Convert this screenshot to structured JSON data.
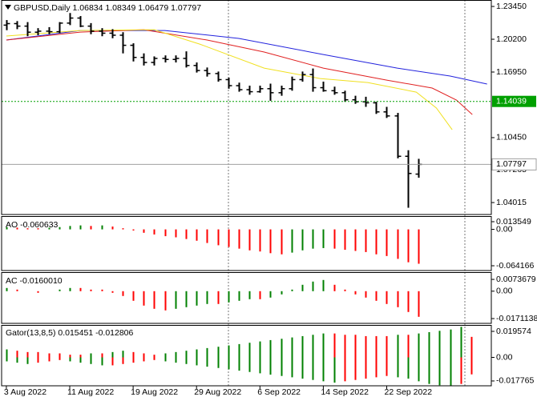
{
  "chart_data": [
    {
      "type": "ohlc",
      "title": "GBPUSD,Daily 1.06834 1.08349 1.06479 1.07797",
      "color": "#000000",
      "open": [
        1.216,
        1.2175,
        1.215,
        1.209,
        1.21,
        1.2095,
        1.218,
        1.223,
        1.215,
        1.21,
        1.208,
        1.206,
        1.196,
        1.184,
        1.179,
        1.183,
        1.182,
        1.183,
        1.176,
        1.171,
        1.168,
        1.162,
        1.156,
        1.152,
        1.15,
        1.153,
        1.149,
        1.153,
        1.162,
        1.167,
        1.154,
        1.151,
        1.149,
        1.142,
        1.14,
        1.139,
        1.13,
        1.126,
        1.086,
        1.06834
      ],
      "high": [
        1.221,
        1.22,
        1.219,
        1.213,
        1.214,
        1.219,
        1.228,
        1.225,
        1.218,
        1.213,
        1.212,
        1.209,
        1.198,
        1.188,
        1.185,
        1.186,
        1.186,
        1.19,
        1.179,
        1.174,
        1.17,
        1.164,
        1.159,
        1.156,
        1.156,
        1.158,
        1.156,
        1.165,
        1.17,
        1.173,
        1.16,
        1.155,
        1.151,
        1.146,
        1.145,
        1.14,
        1.135,
        1.129,
        1.092,
        1.08349
      ],
      "low": [
        1.211,
        1.212,
        1.205,
        1.206,
        1.207,
        1.208,
        1.216,
        1.214,
        1.207,
        1.205,
        1.203,
        1.188,
        1.18,
        1.176,
        1.176,
        1.179,
        1.179,
        1.174,
        1.169,
        1.165,
        1.16,
        1.153,
        1.15,
        1.147,
        1.149,
        1.141,
        1.146,
        1.151,
        1.16,
        1.15,
        1.15,
        1.147,
        1.14,
        1.138,
        1.135,
        1.128,
        1.124,
        1.084,
        1.035,
        1.06479
      ],
      "close": [
        1.2175,
        1.215,
        1.209,
        1.21,
        1.2095,
        1.218,
        1.223,
        1.215,
        1.21,
        1.208,
        1.206,
        1.196,
        1.184,
        1.179,
        1.183,
        1.182,
        1.183,
        1.176,
        1.171,
        1.168,
        1.162,
        1.156,
        1.152,
        1.15,
        1.153,
        1.149,
        1.153,
        1.162,
        1.167,
        1.154,
        1.151,
        1.149,
        1.142,
        1.14,
        1.139,
        1.13,
        1.126,
        1.086,
        1.069,
        1.07797
      ],
      "lines": [
        {
          "color": "#2222dd",
          "x": [
            0,
            7,
            15,
            22,
            30,
            37,
            42,
            45.5
          ],
          "values": [
            1.2012,
            1.2107,
            1.2107,
            1.2028,
            1.1869,
            1.1734,
            1.1655,
            1.1576
          ]
        },
        {
          "color": "#e02020",
          "x": [
            0,
            7,
            13,
            19,
            24.4,
            30,
            36,
            40.3,
            42.6,
            44.1
          ],
          "values": [
            1.2012,
            1.2091,
            1.2115,
            1.2012,
            1.1893,
            1.1734,
            1.1615,
            1.1536,
            1.1417,
            1.1274
          ]
        },
        {
          "color": "#f0e020",
          "x": [
            0,
            7,
            14,
            18.3,
            24.4,
            29.7,
            34.2,
            38.8,
            40.7,
            42.2
          ],
          "values": [
            1.2052,
            1.2107,
            1.2115,
            1.1972,
            1.1734,
            1.1631,
            1.1591,
            1.1496,
            1.1338,
            1.1123
          ]
        }
      ],
      "level": {
        "value": 1.14039,
        "label": "1.14039",
        "color": "#00a000"
      },
      "bid": {
        "value": 1.07797,
        "label": "1.07797",
        "color": "#a0a0a0"
      },
      "xlim": [
        -0.45,
        45.9
      ],
      "ylim": [
        1.0283,
        1.2409
      ],
      "yticks": [
        {
          "value": 1.2345,
          "label": "1.23450"
        },
        {
          "value": 1.202,
          "label": "1.20200"
        },
        {
          "value": 1.1695,
          "label": "1.16950"
        },
        {
          "value": 1.1045,
          "label": "1.10450"
        },
        1.07265,
        1.04015
      ],
      "xticks": [
        {
          "value": 0,
          "label": "3 Aug 2022"
        },
        {
          "value": 6,
          "label": "11 Aug 2022"
        },
        {
          "value": 12,
          "label": "19 Aug 2022"
        },
        {
          "value": 18,
          "label": "29 Aug 2022"
        },
        {
          "value": 24,
          "label": "6 Sep 2022"
        },
        {
          "value": 30,
          "label": "14 Sep 2022"
        },
        {
          "value": 36,
          "label": "22 Sep 2022"
        }
      ]
    },
    {
      "type": "oscillator",
      "title": "AO -0.060633",
      "up_color": "#008000",
      "down_color": "#ff0000",
      "values": [
        0.004,
        0.003,
        0.002,
        0.002,
        0.003,
        0.004,
        0.006,
        0.007,
        0.006,
        0.007,
        0.005,
        0.002,
        -0.002,
        -0.006,
        -0.009,
        -0.012,
        -0.014,
        -0.017,
        -0.02,
        -0.024,
        -0.028,
        -0.031,
        -0.034,
        -0.037,
        -0.039,
        -0.042,
        -0.044,
        -0.041,
        -0.037,
        -0.034,
        -0.033,
        -0.034,
        -0.036,
        -0.038,
        -0.04,
        -0.044,
        -0.047,
        -0.052,
        -0.058,
        -0.060633
      ],
      "ylim": [
        -0.0726,
        0.0234
      ],
      "yticks": [
        0.013549,
        {
          "value": 0,
          "label": "0.00"
        },
        -0.064166
      ]
    },
    {
      "type": "oscillator",
      "title": "AC -0.0160010",
      "up_color": "#008000",
      "down_color": "#ff0000",
      "values": [
        0.002,
        0.001,
        0.0,
        -0.001,
        0.0,
        0.001,
        0.002,
        0.002,
        0.001,
        0.001,
        -0.001,
        -0.003,
        -0.006,
        -0.009,
        -0.011,
        -0.012,
        -0.011,
        -0.01,
        -0.009,
        -0.008,
        -0.008,
        -0.007,
        -0.006,
        -0.005,
        -0.005,
        -0.004,
        -0.002,
        0.001,
        0.004,
        0.006,
        0.007,
        0.004,
        0.001,
        -0.002,
        -0.004,
        -0.006,
        -0.008,
        -0.01,
        -0.013,
        -0.016001
      ],
      "ylim": [
        -0.0201,
        0.0119
      ],
      "yticks": [
        0.0073679,
        {
          "value": 0,
          "label": "0.00"
        },
        -0.0171138
      ]
    },
    {
      "type": "gator",
      "title": "Gator(13,8,5) 0.015451 -0.012806",
      "up_color": "#008000",
      "down_color": "#ff0000",
      "upper": [
        0.006,
        0.005,
        0.004,
        0.004,
        0.003,
        0.003,
        0.002,
        0.002,
        0.003,
        0.003,
        0.004,
        0.005,
        0.004,
        0.003,
        0.002,
        0.003,
        0.004,
        0.005,
        0.006,
        0.007,
        0.008,
        0.009,
        0.01,
        0.011,
        0.012,
        0.013,
        0.014,
        0.015,
        0.016,
        0.017,
        0.018,
        0.018,
        0.017,
        0.017,
        0.016,
        0.016,
        0.016,
        0.017,
        0.017,
        0.018,
        0.019,
        0.02,
        0.021,
        0.023,
        0.015451
      ],
      "lower": [
        -0.003,
        -0.004,
        -0.005,
        -0.004,
        -0.003,
        -0.002,
        -0.003,
        -0.004,
        -0.005,
        -0.006,
        -0.006,
        -0.005,
        -0.004,
        -0.003,
        -0.002,
        -0.003,
        -0.004,
        -0.005,
        -0.006,
        -0.007,
        -0.008,
        -0.009,
        -0.01,
        -0.011,
        -0.012,
        -0.013,
        -0.014,
        -0.015,
        -0.016,
        -0.017,
        -0.018,
        -0.019,
        -0.018,
        -0.017,
        -0.016,
        -0.015,
        -0.014,
        -0.015,
        -0.016,
        -0.018,
        -0.02,
        -0.021,
        -0.022,
        -0.02,
        -0.012806
      ],
      "ylim": [
        -0.0214,
        0.0244
      ],
      "yticks": [
        0.019574,
        {
          "value": 0,
          "label": "0.00"
        },
        -0.017765
      ]
    }
  ]
}
